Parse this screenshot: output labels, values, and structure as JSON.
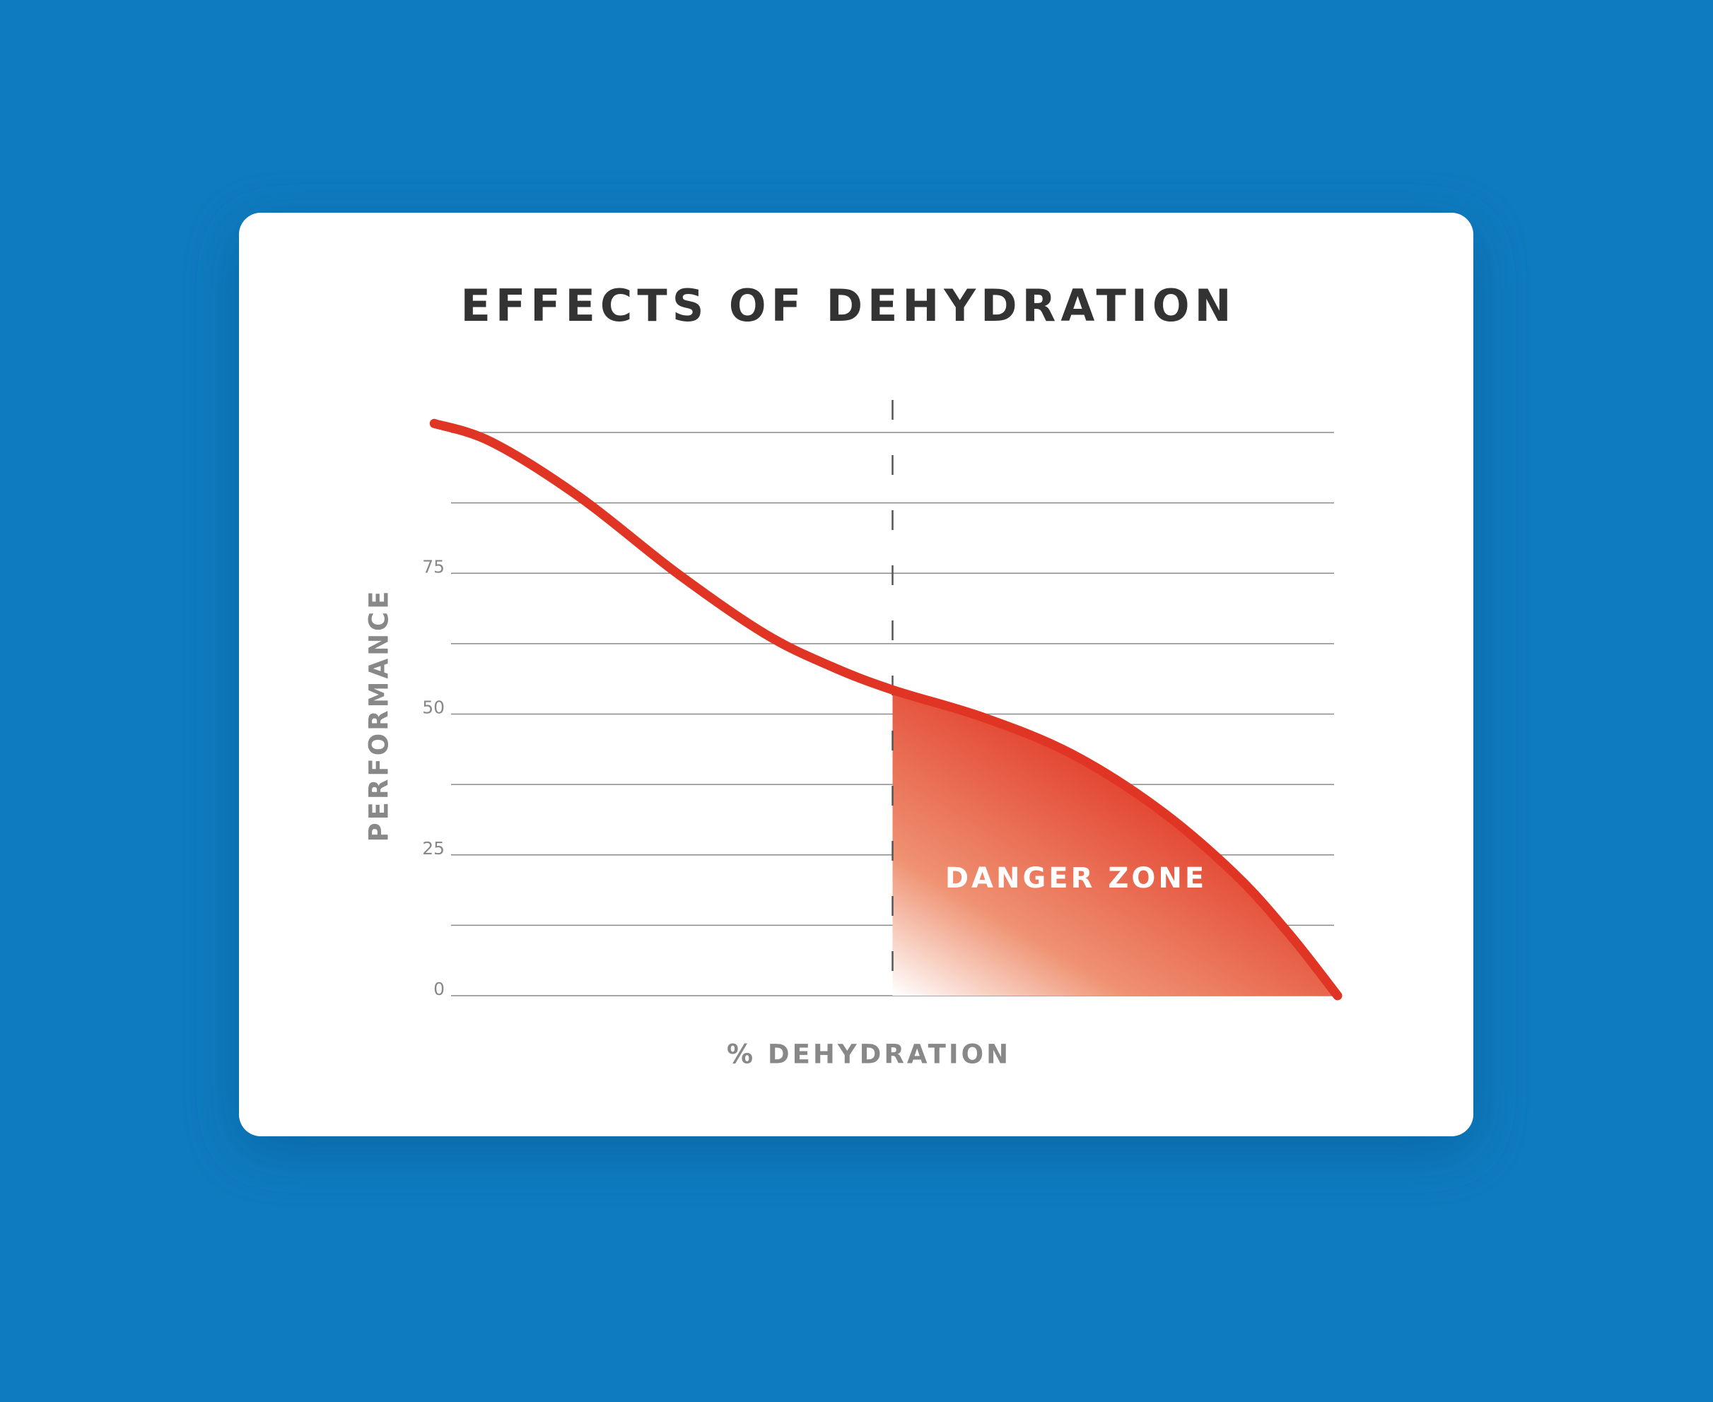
{
  "chart_data": {
    "type": "line",
    "title": "EFFECTS OF DEHYDRATION",
    "x_label": "% DEHYDRATION",
    "y_label": "PERFORMANCE",
    "xlim": [
      0,
      100
    ],
    "ylim": [
      0,
      100
    ],
    "yticks": [
      0,
      25,
      50,
      75
    ],
    "y_minor_ticks": [
      12.5,
      37.5,
      62.5,
      87.5,
      100
    ],
    "grid": true,
    "series": [
      {
        "color": "#e03424",
        "x": [
          -1.9,
          4.6,
          14.5,
          25.6,
          35.5,
          43,
          50,
          60.3,
          70.2,
          80,
          88.7,
          94.9,
          100.4
        ],
        "values": [
          101.6,
          98.3,
          88.6,
          75,
          64.3,
          58.5,
          54.3,
          49.4,
          43,
          33.3,
          21.7,
          11,
          0
        ]
      }
    ],
    "danger_zone": {
      "label": "DANGER ZONE",
      "x_start": 50,
      "color": "#e03424"
    }
  }
}
